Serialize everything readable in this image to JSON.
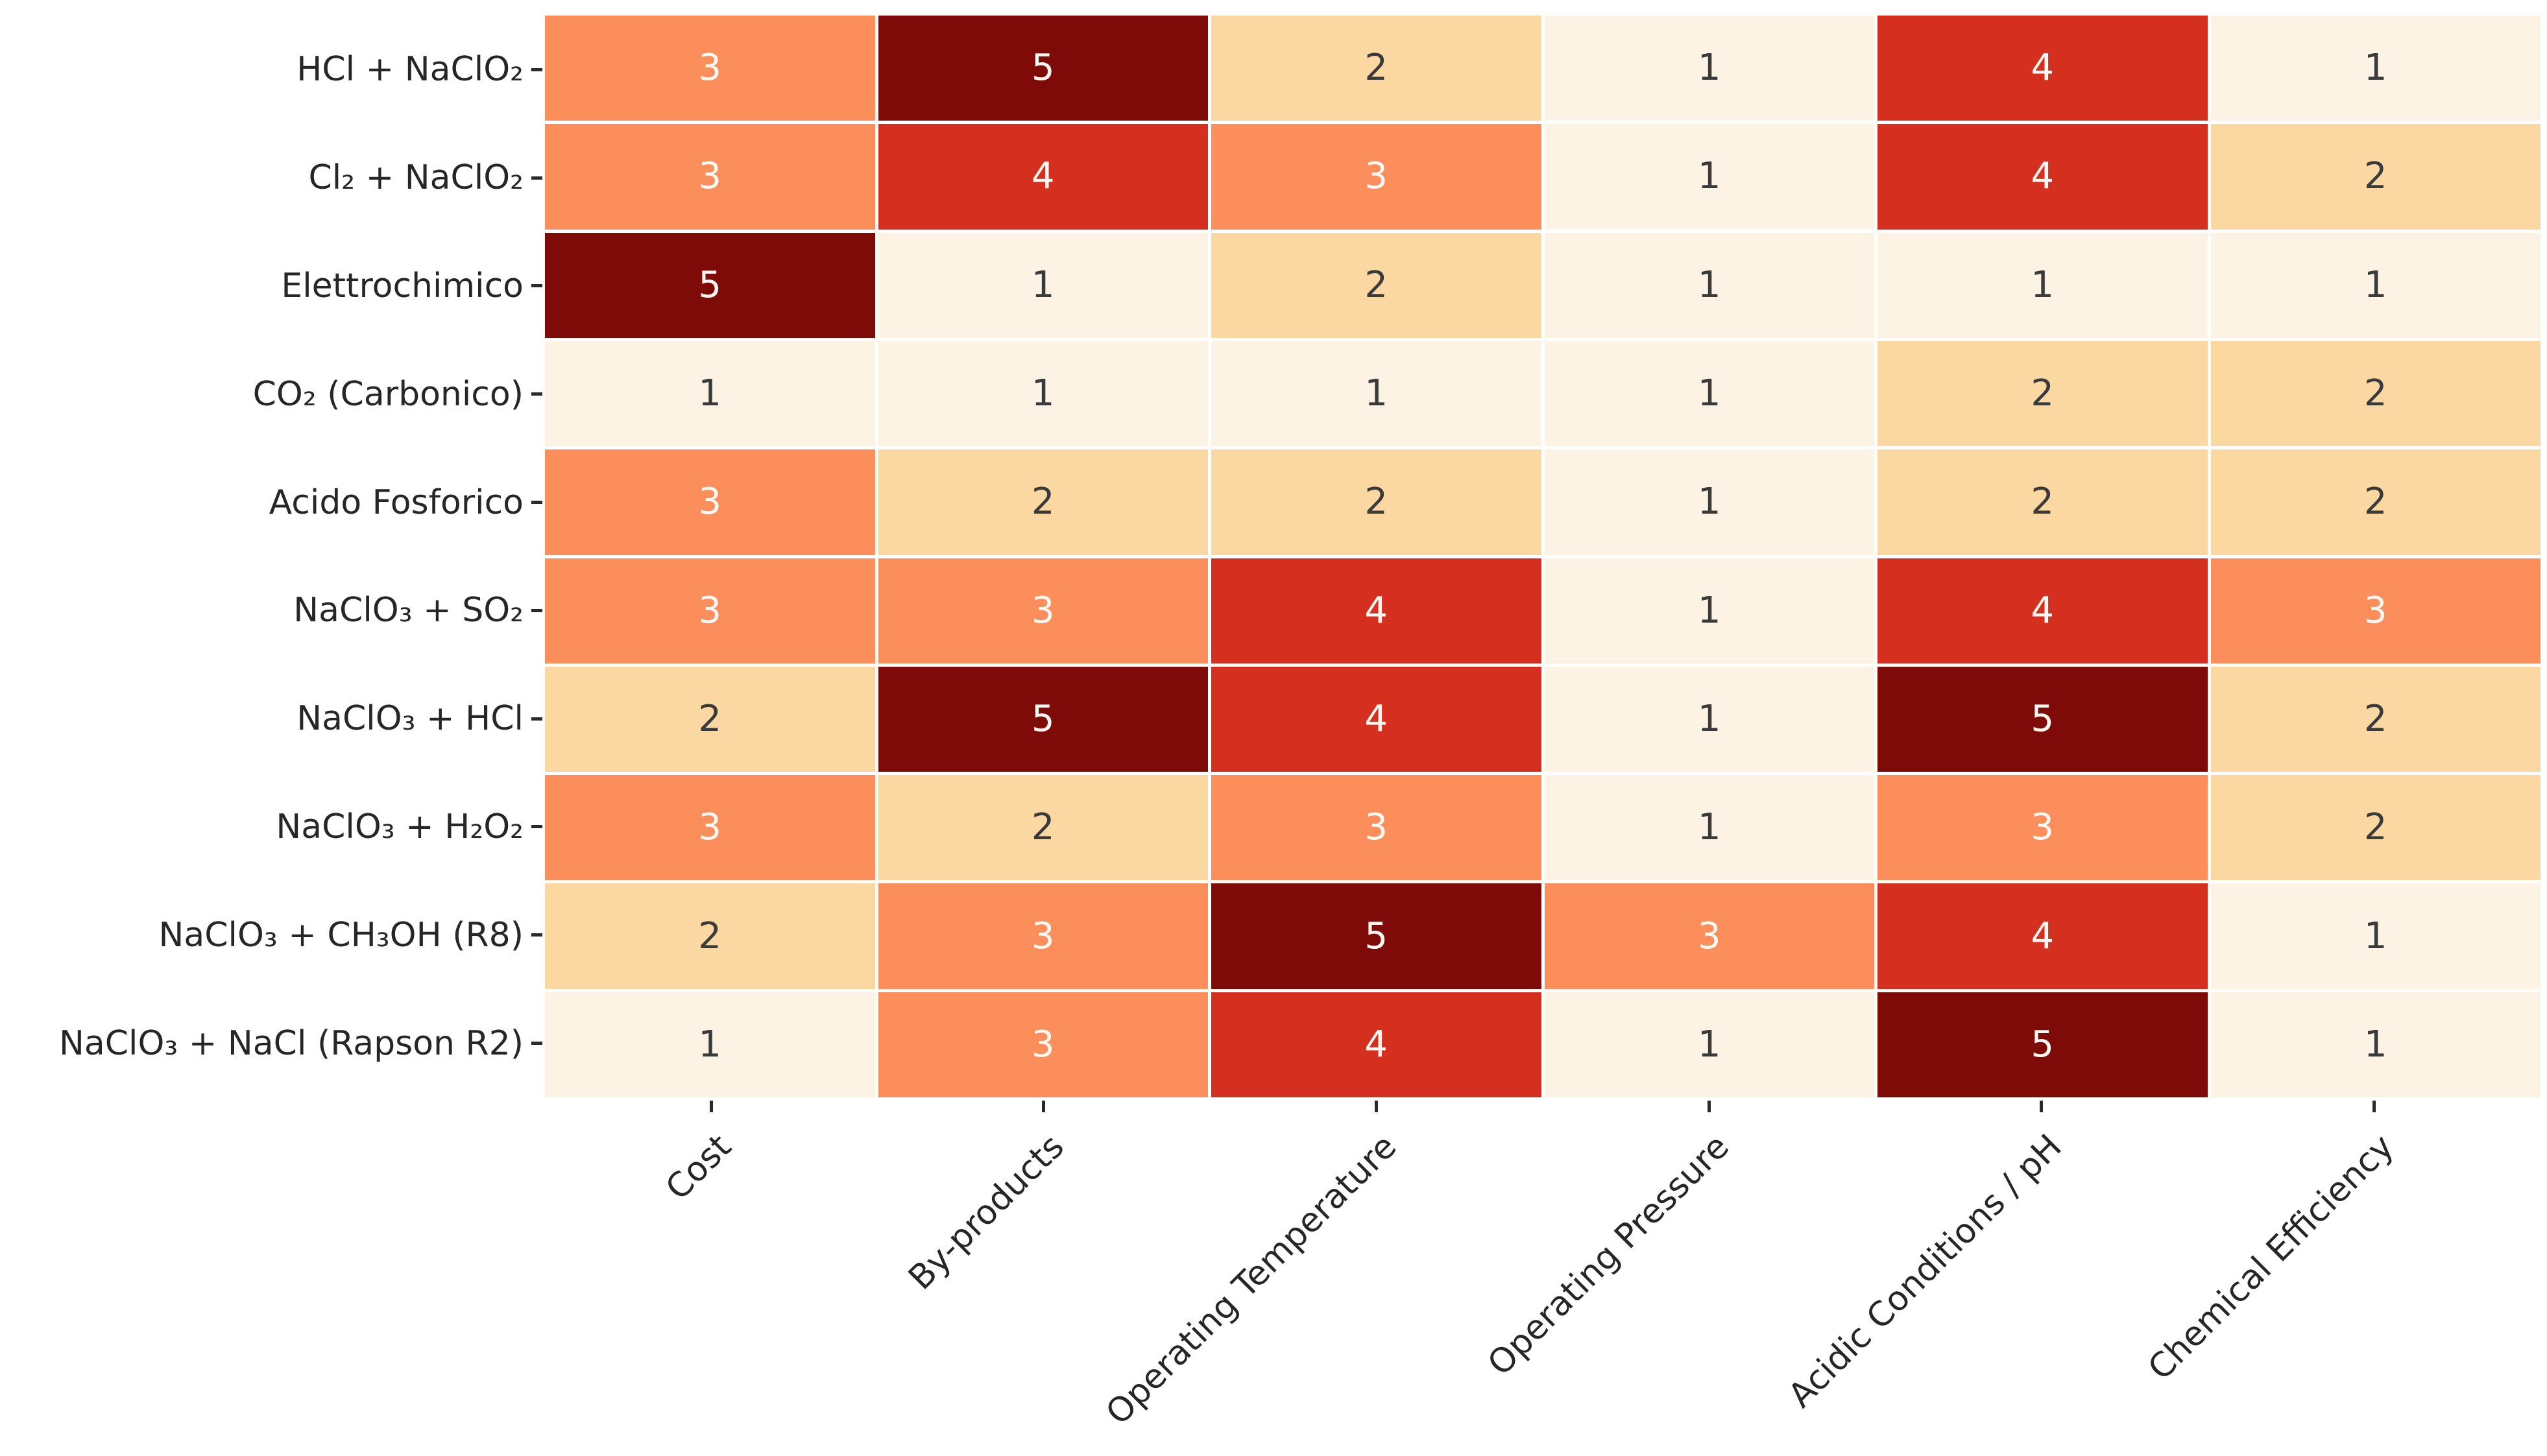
{
  "chart_data": {
    "type": "heatmap",
    "title": "",
    "xlabel": "",
    "ylabel": "",
    "legend": "none",
    "grid_gap_color": "#ffffff",
    "background": "#ffffff",
    "tick_color": "#2a2a2a",
    "label_color": "#262626",
    "value_range": [
      1,
      5
    ],
    "colormap": "OrRd",
    "palette": {
      "1": "#fdf3e4",
      "2": "#fbd7a2",
      "3": "#fb8e5a",
      "4": "#d5301f",
      "5": "#7f0b08"
    },
    "text_colors": {
      "dark": "#3a3a3a",
      "light": "#fdf8f2"
    },
    "light_text_threshold": 3,
    "columns": [
      "Cost",
      "By-products",
      "Operating Temperature",
      "Operating Pressure",
      "Acidic Conditions / pH",
      "Chemical Efficiency"
    ],
    "rows": [
      "HCl + NaClO₂",
      "Cl₂ + NaClO₂",
      "Elettrochimico",
      "CO₂ (Carbonico)",
      "Acido Fosforico",
      "NaClO₃ + SO₂",
      "NaClO₃ + HCl",
      "NaClO₃ + H₂O₂",
      "NaClO₃ + CH₃OH (R8)",
      "NaClO₃ + NaCl (Rapson R2)"
    ],
    "values": [
      [
        3,
        5,
        2,
        1,
        4,
        1
      ],
      [
        3,
        4,
        3,
        1,
        4,
        2
      ],
      [
        5,
        1,
        2,
        1,
        1,
        1
      ],
      [
        1,
        1,
        1,
        1,
        2,
        2
      ],
      [
        3,
        2,
        2,
        1,
        2,
        2
      ],
      [
        3,
        3,
        4,
        1,
        4,
        3
      ],
      [
        2,
        5,
        4,
        1,
        5,
        2
      ],
      [
        3,
        2,
        3,
        1,
        3,
        2
      ],
      [
        2,
        3,
        5,
        3,
        4,
        1
      ],
      [
        1,
        3,
        4,
        1,
        5,
        1
      ]
    ]
  }
}
